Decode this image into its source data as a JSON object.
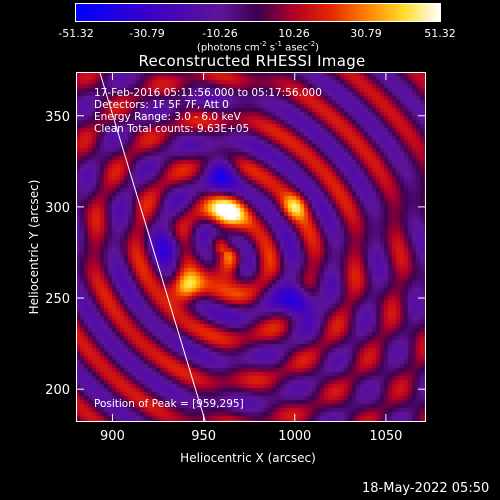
{
  "colorbar": {
    "ticks": [
      "-51.32",
      "-30.79",
      "-10.26",
      "10.26",
      "30.79",
      "51.32"
    ],
    "tick_values": [
      -51.32,
      -30.79,
      -10.26,
      10.26,
      30.79,
      51.32
    ],
    "min": -51.32,
    "max": 51.32,
    "units_prefix": "(photons cm",
    "units_exp1": "-2",
    "units_mid1": " s",
    "units_exp2": "-1",
    "units_mid2": " asec",
    "units_exp3": "-2",
    "units_suffix": ")",
    "colormap": "blue-purple-red-yellow-white"
  },
  "chart_data": {
    "type": "heatmap",
    "title": "Reconstructed RHESSI Image",
    "xlabel": "Heliocentric X (arcsec)",
    "ylabel": "Heliocentric Y (arcsec)",
    "xlim": [
      880,
      1072
    ],
    "ylim": [
      182,
      374
    ],
    "xticks": [
      900,
      950,
      1000,
      1050
    ],
    "yticks": [
      200,
      250,
      300,
      350
    ],
    "xtick_labels": [
      "900",
      "950",
      "1000",
      "1050"
    ],
    "ytick_labels": [
      "200",
      "250",
      "300",
      "350"
    ],
    "zrange": [
      -51.32,
      51.32
    ],
    "annotations": [
      "17-Feb-2016 05:11:56.000 to 05:17:56.000",
      "Detectors: 1F 5F 7F, Att 0",
      "Energy Range: 3.0 - 6.0 keV",
      "Clean    Total counts: 9.63E+05"
    ],
    "peak_label": "Position of Peak = [959,295]",
    "peak": [
      959,
      295
    ],
    "limb_line": [
      [
        893,
        374
      ],
      [
        951,
        182
      ]
    ],
    "sources": [
      {
        "x": 940,
        "y": 256,
        "amp": 51.32,
        "sigma": 6
      },
      {
        "x": 963,
        "y": 296,
        "amp": 46,
        "sigma": 7
      },
      {
        "x": 1000,
        "y": 300,
        "amp": 28,
        "sigma": 5
      },
      {
        "x": 963,
        "y": 266,
        "amp": 34,
        "sigma": 6
      }
    ],
    "negatives": [
      {
        "x": 960,
        "y": 320,
        "amp": -38,
        "sigma": 6
      },
      {
        "x": 1002,
        "y": 248,
        "amp": -51.32,
        "sigma": 6
      },
      {
        "x": 933,
        "y": 278,
        "amp": -26,
        "sigma": 6
      }
    ],
    "ring_center": [
      962,
      276
    ],
    "ring_wavelength": 24
  },
  "footer": {
    "timestamp": "18-May-2022 05:50"
  }
}
